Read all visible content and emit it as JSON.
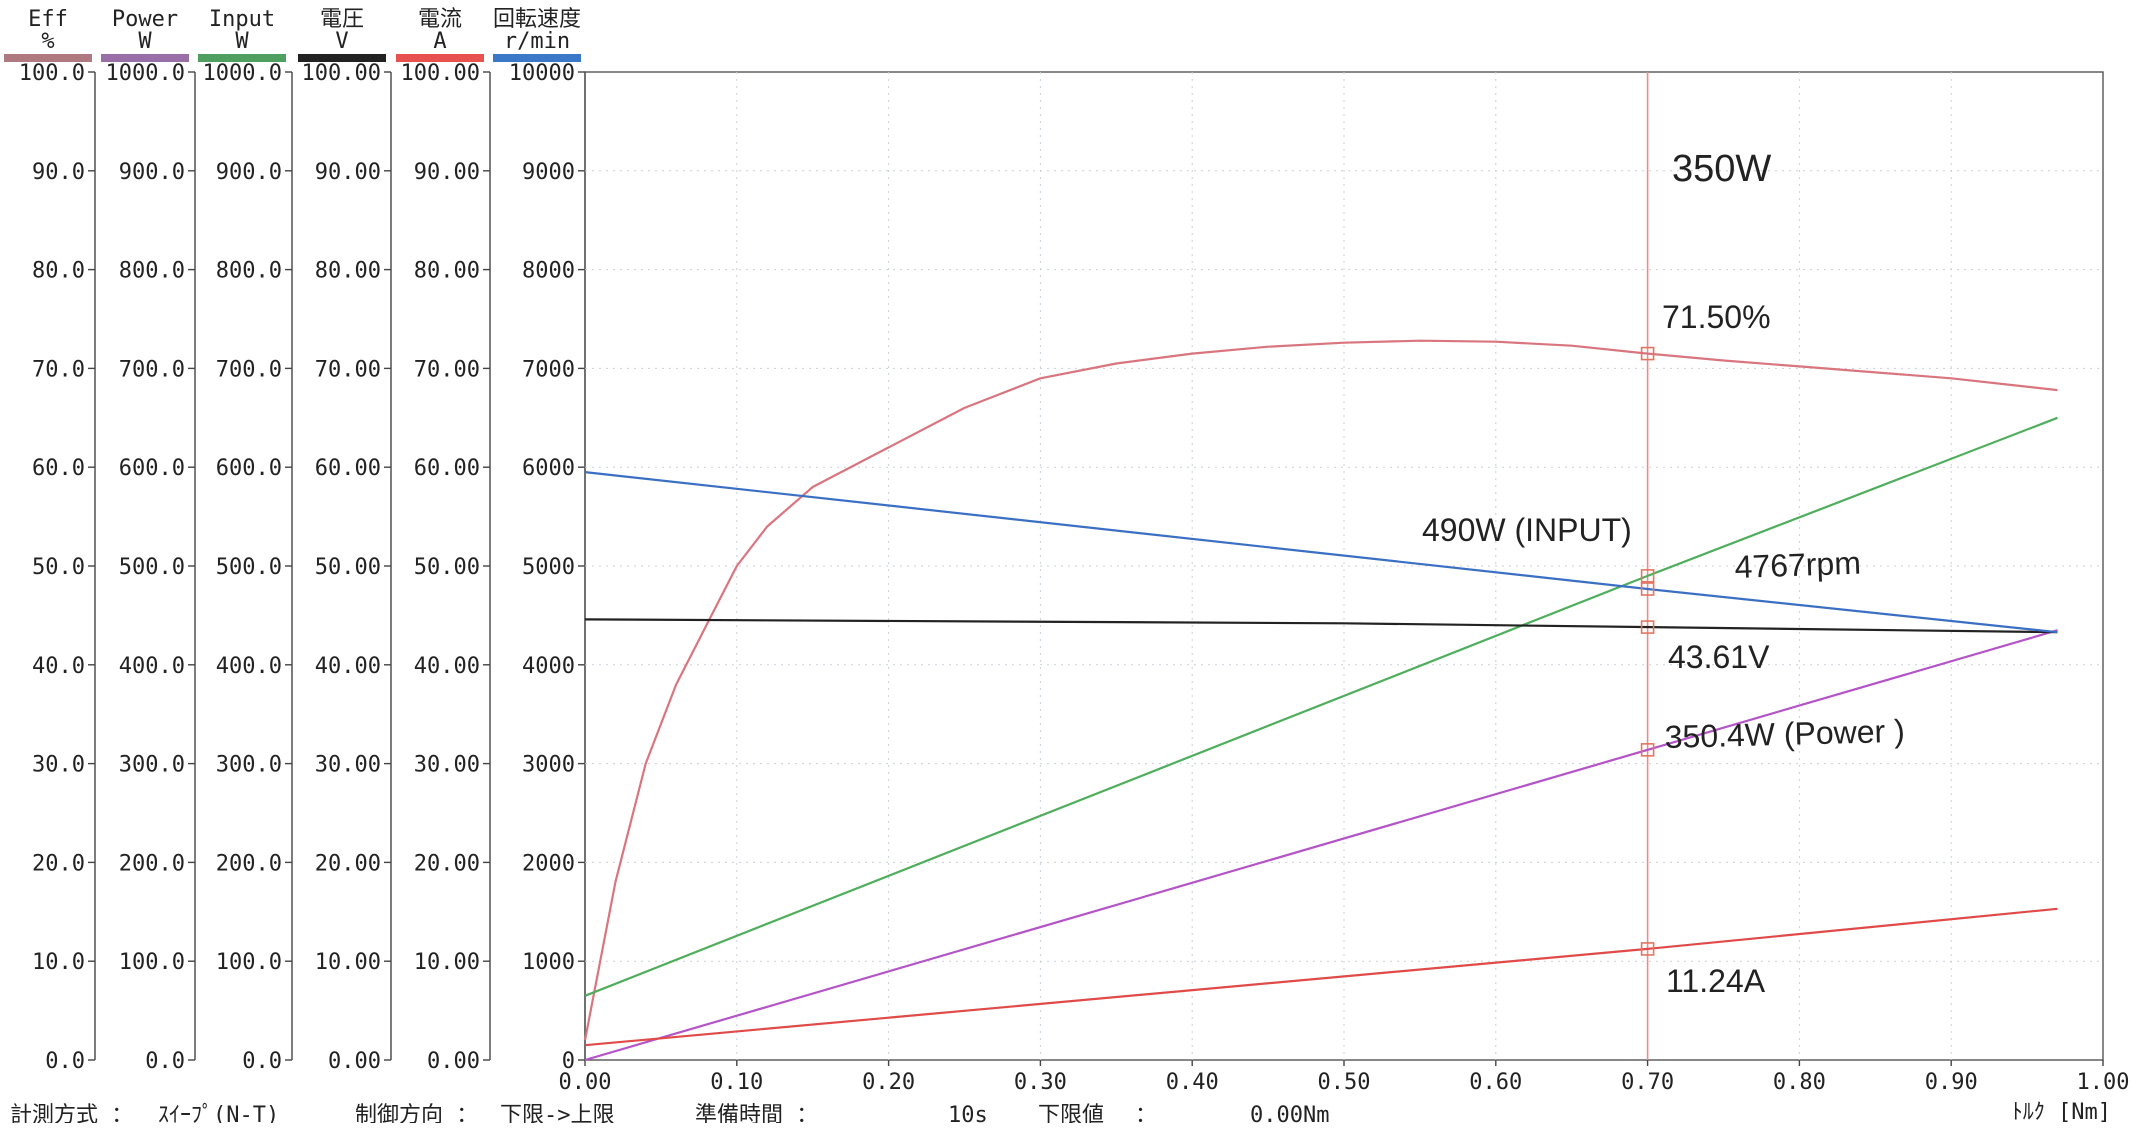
{
  "chart_data": {
    "type": "line",
    "xlabel": "ﾄﾙｸ [Nm]",
    "xlim": [
      0,
      1.0
    ],
    "x_ticks": [
      "0.00",
      "0.10",
      "0.20",
      "0.30",
      "0.40",
      "0.50",
      "0.60",
      "0.70",
      "0.80",
      "0.90",
      "1.00"
    ],
    "grid": true,
    "marker_x": 0.7,
    "axes": [
      {
        "name": "Eff",
        "unit": "%",
        "color": "#b0787f",
        "range": [
          0,
          100
        ],
        "ticks": [
          "100.0",
          "90.0",
          "80.0",
          "70.0",
          "60.0",
          "50.0",
          "40.0",
          "30.0",
          "20.0",
          "10.0",
          "0.0"
        ]
      },
      {
        "name": "Power",
        "unit": "W",
        "color": "#9a6fa8",
        "range": [
          0,
          1000
        ],
        "ticks": [
          "1000.0",
          "900.0",
          "800.0",
          "700.0",
          "600.0",
          "500.0",
          "400.0",
          "300.0",
          "200.0",
          "100.0",
          "0.0"
        ]
      },
      {
        "name": "Input",
        "unit": "W",
        "color": "#4fa060",
        "range": [
          0,
          1000
        ],
        "ticks": [
          "1000.0",
          "900.0",
          "800.0",
          "700.0",
          "600.0",
          "500.0",
          "400.0",
          "300.0",
          "200.0",
          "100.0",
          "0.0"
        ]
      },
      {
        "name": "電圧",
        "unit": "V",
        "color": "#222222",
        "range": [
          0,
          100
        ],
        "ticks": [
          "100.00",
          "90.00",
          "80.00",
          "70.00",
          "60.00",
          "50.00",
          "40.00",
          "30.00",
          "20.00",
          "10.00",
          "0.00"
        ]
      },
      {
        "name": "電流",
        "unit": "A",
        "color": "#e8524e",
        "range": [
          0,
          100
        ],
        "ticks": [
          "100.00",
          "90.00",
          "80.00",
          "70.00",
          "60.00",
          "50.00",
          "40.00",
          "30.00",
          "20.00",
          "10.00",
          "0.00"
        ]
      },
      {
        "name": "回転速度",
        "unit": "r/min",
        "color": "#3c78c8",
        "range": [
          0,
          10000
        ],
        "ticks": [
          "10000",
          "9000",
          "8000",
          "7000",
          "6000",
          "5000",
          "4000",
          "3000",
          "2000",
          "1000",
          "0"
        ]
      }
    ],
    "series": [
      {
        "name": "Eff",
        "axis": 0,
        "color": "#d9757e",
        "x": [
          0.0,
          0.02,
          0.04,
          0.06,
          0.08,
          0.1,
          0.12,
          0.15,
          0.2,
          0.25,
          0.3,
          0.35,
          0.4,
          0.45,
          0.5,
          0.55,
          0.6,
          0.65,
          0.7,
          0.75,
          0.8,
          0.85,
          0.9,
          0.97
        ],
        "y": [
          2,
          18,
          30,
          38,
          44,
          50,
          54,
          58,
          62,
          66,
          69,
          70.5,
          71.5,
          72.2,
          72.6,
          72.8,
          72.7,
          72.3,
          71.5,
          70.8,
          70.2,
          69.6,
          69.0,
          67.8
        ]
      },
      {
        "name": "Power",
        "axis": 1,
        "color": "#b454c8",
        "x": [
          0.0,
          0.97
        ],
        "y": [
          0,
          435
        ]
      },
      {
        "name": "Input",
        "axis": 2,
        "color": "#4fae5c",
        "x": [
          0.0,
          0.7,
          0.97
        ],
        "y": [
          65,
          490,
          650
        ]
      },
      {
        "name": "電圧",
        "axis": 3,
        "color": "#222222",
        "x": [
          0.0,
          0.5,
          0.97
        ],
        "y": [
          44.6,
          44.2,
          43.3
        ]
      },
      {
        "name": "電流",
        "axis": 4,
        "color": "#e04a48",
        "x": [
          0.0,
          0.7,
          0.97
        ],
        "y": [
          1.5,
          11.24,
          15.3
        ]
      },
      {
        "name": "回転速度",
        "axis": 5,
        "color": "#3a6fc4",
        "x": [
          0.0,
          0.7,
          0.97
        ],
        "y": [
          5950,
          4767,
          4330
        ]
      }
    ],
    "annotations": [
      "350W",
      "71.50%",
      "490W (INPUT)",
      "4767rpm",
      "43.61V",
      "350.4W (Power )",
      "11.24A"
    ]
  },
  "footer": {
    "method_label": "計測方式 ：",
    "method_value": "ｽｲｰﾌﾟ(N-T)",
    "direction_label": "制御方向 ：",
    "direction_value": "下限->上限",
    "prep_label": "準備時間 ：",
    "prep_value": "10s",
    "lower_label": "下限値",
    "lower_colon": "：",
    "lower_value": "0.00Nm"
  }
}
